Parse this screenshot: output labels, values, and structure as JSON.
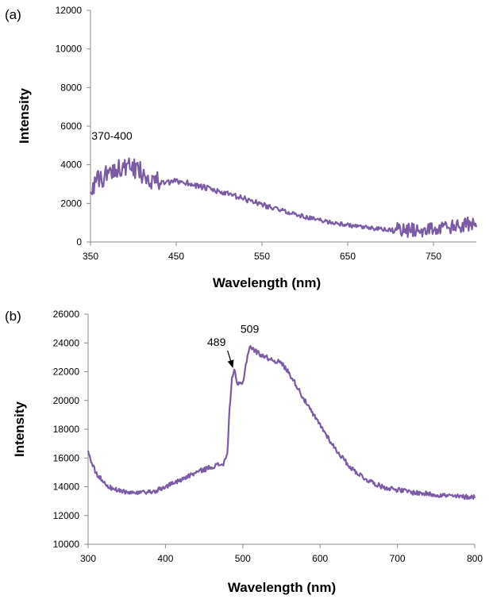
{
  "chart_data": [
    {
      "type": "line",
      "panel_label": "(a)",
      "xlabel": "Wavelength (nm)",
      "ylabel": "Intensity",
      "xlim": [
        350,
        800
      ],
      "ylim": [
        0,
        12000
      ],
      "xticks": [
        350,
        450,
        550,
        650,
        750
      ],
      "yticks": [
        0,
        2000,
        4000,
        6000,
        8000,
        10000,
        12000
      ],
      "grid": false,
      "annotations": [
        {
          "text": "370-400",
          "x": 375,
          "y": 5300
        }
      ],
      "series": [
        {
          "color": "#7b5aa6",
          "noise_amplitude": [
            {
              "from": 350,
              "to": 430,
              "amp": 900
            },
            {
              "from": 430,
              "to": 560,
              "amp": 250
            },
            {
              "from": 560,
              "to": 700,
              "amp": 180
            },
            {
              "from": 700,
              "to": 800,
              "amp": 650
            }
          ],
          "x": [
            350,
            360,
            370,
            380,
            390,
            400,
            410,
            420,
            430,
            440,
            450,
            460,
            480,
            500,
            520,
            540,
            560,
            580,
            600,
            620,
            640,
            660,
            680,
            700,
            720,
            740,
            760,
            780,
            790,
            800
          ],
          "y": [
            2800,
            3200,
            3500,
            3900,
            3800,
            3800,
            3600,
            3300,
            3100,
            3050,
            3150,
            3100,
            2850,
            2600,
            2350,
            2100,
            1800,
            1550,
            1300,
            1100,
            950,
            800,
            700,
            620,
            600,
            650,
            700,
            800,
            900,
            800
          ]
        }
      ]
    },
    {
      "type": "line",
      "panel_label": "(b)",
      "xlabel": "Wavelength (nm)",
      "ylabel": "Intensity",
      "xlim": [
        300,
        800
      ],
      "ylim": [
        10000,
        26000
      ],
      "xticks": [
        300,
        400,
        500,
        600,
        700,
        800
      ],
      "yticks": [
        10000,
        12000,
        14000,
        16000,
        18000,
        20000,
        22000,
        24000,
        26000
      ],
      "grid": false,
      "annotations": [
        {
          "text": "489",
          "x": 466,
          "y": 23800,
          "arrow_to": {
            "x": 487,
            "y": 22300
          }
        },
        {
          "text": "509",
          "x": 509,
          "y": 24700
        }
      ],
      "series": [
        {
          "color": "#7b5aa6",
          "noise_amplitude": [
            {
              "from": 300,
              "to": 800,
              "amp": 280
            }
          ],
          "x": [
            300,
            305,
            310,
            320,
            330,
            340,
            350,
            360,
            370,
            380,
            390,
            400,
            420,
            440,
            460,
            475,
            480,
            483,
            486,
            489,
            492,
            495,
            500,
            505,
            509,
            512,
            520,
            530,
            540,
            550,
            560,
            570,
            580,
            590,
            600,
            620,
            640,
            660,
            680,
            700,
            720,
            740,
            760,
            780,
            800
          ],
          "y": [
            16500,
            15600,
            15000,
            14300,
            13900,
            13700,
            13600,
            13550,
            13550,
            13600,
            13750,
            14000,
            14500,
            15000,
            15400,
            15600,
            16200,
            19500,
            21500,
            22200,
            21200,
            21100,
            21200,
            22800,
            23800,
            23600,
            23300,
            23000,
            22800,
            22600,
            21900,
            21000,
            20000,
            19100,
            18300,
            16600,
            15300,
            14500,
            14000,
            13800,
            13600,
            13500,
            13400,
            13300,
            13300
          ]
        }
      ]
    }
  ]
}
